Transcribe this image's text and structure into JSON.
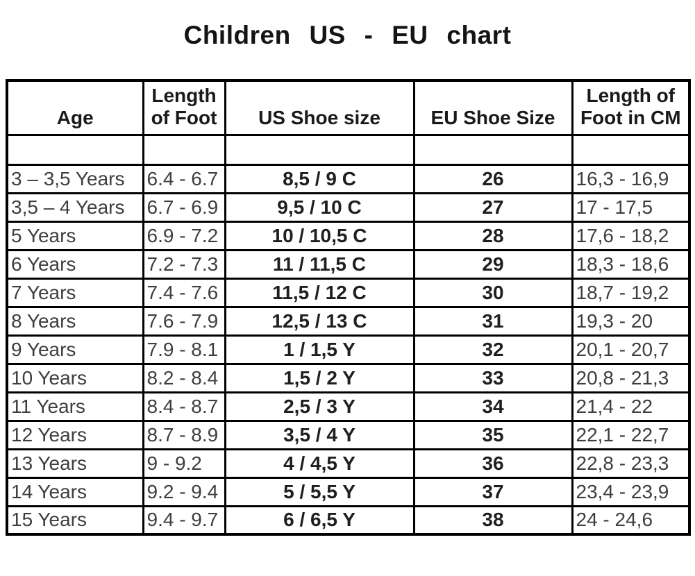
{
  "title": "Children US - EU chart",
  "table": {
    "headers": {
      "age": "Age",
      "foot_length": "Length of Foot",
      "us_size": "US Shoe size",
      "eu_size": "EU Shoe Size",
      "foot_cm": "Length of Foot in CM"
    },
    "rows": [
      {
        "age": "3 – 3,5 Years",
        "foot_length": "6.4 - 6.7",
        "us_size": "8,5 / 9 C",
        "eu_size": "26",
        "foot_cm": "16,3 - 16,9"
      },
      {
        "age": "3,5 – 4 Years",
        "foot_length": "6.7 - 6.9",
        "us_size": "9,5 / 10 C",
        "eu_size": "27",
        "foot_cm": "17 - 17,5"
      },
      {
        "age": "5 Years",
        "foot_length": "6.9 - 7.2",
        "us_size": "10 / 10,5 C",
        "eu_size": "28",
        "foot_cm": "17,6 - 18,2"
      },
      {
        "age": "6 Years",
        "foot_length": "7.2 - 7.3",
        "us_size": "11 / 11,5 C",
        "eu_size": "29",
        "foot_cm": "18,3 - 18,6"
      },
      {
        "age": "7 Years",
        "foot_length": "7.4 - 7.6",
        "us_size": "11,5 / 12 C",
        "eu_size": "30",
        "foot_cm": "18,7 - 19,2"
      },
      {
        "age": "8 Years",
        "foot_length": "7.6 - 7.9",
        "us_size": "12,5 / 13 C",
        "eu_size": "31",
        "foot_cm": "19,3 - 20"
      },
      {
        "age": "9 Years",
        "foot_length": "7.9 - 8.1",
        "us_size": "1 / 1,5 Y",
        "eu_size": "32",
        "foot_cm": "20,1 - 20,7"
      },
      {
        "age": "10 Years",
        "foot_length": "8.2 - 8.4",
        "us_size": "1,5 / 2 Y",
        "eu_size": "33",
        "foot_cm": "20,8 - 21,3"
      },
      {
        "age": "11 Years",
        "foot_length": "8.4 - 8.7",
        "us_size": "2,5 / 3 Y",
        "eu_size": "34",
        "foot_cm": "21,4 - 22"
      },
      {
        "age": "12 Years",
        "foot_length": "8.7 - 8.9",
        "us_size": "3,5 / 4 Y",
        "eu_size": "35",
        "foot_cm": "22,1 - 22,7"
      },
      {
        "age": "13 Years",
        "foot_length": "9 - 9.2",
        "us_size": "4 / 4,5 Y",
        "eu_size": "36",
        "foot_cm": "22,8 - 23,3"
      },
      {
        "age": "14 Years",
        "foot_length": "9.2 - 9.4",
        "us_size": "5 / 5,5 Y",
        "eu_size": "37",
        "foot_cm": "23,4 - 23,9"
      },
      {
        "age": "15 Years",
        "foot_length": "9.4 - 9.7",
        "us_size": "6 / 6,5 Y",
        "eu_size": "38",
        "foot_cm": "24 - 24,6"
      }
    ]
  }
}
